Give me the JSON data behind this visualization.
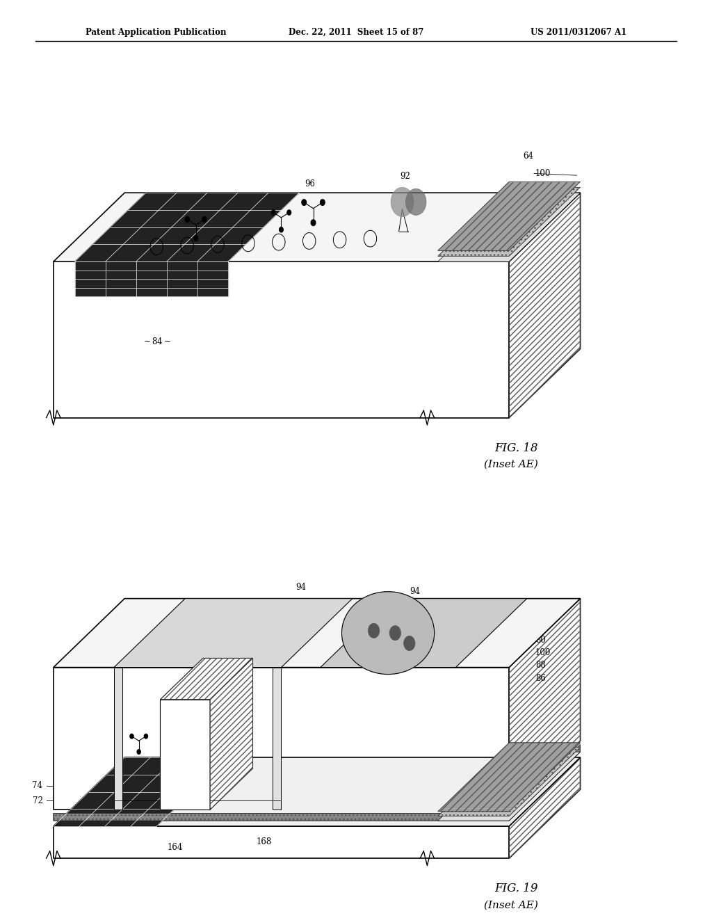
{
  "background_color": "#ffffff",
  "header_left": "Patent Application Publication",
  "header_center": "Dec. 22, 2011  Sheet 15 of 87",
  "header_right": "US 2011/0312067 A1",
  "fig18_label": "FIG. 18",
  "fig18_sublabel": "(Inset AE)",
  "fig19_label": "FIG. 19",
  "fig19_sublabel": "(Inset AE)"
}
